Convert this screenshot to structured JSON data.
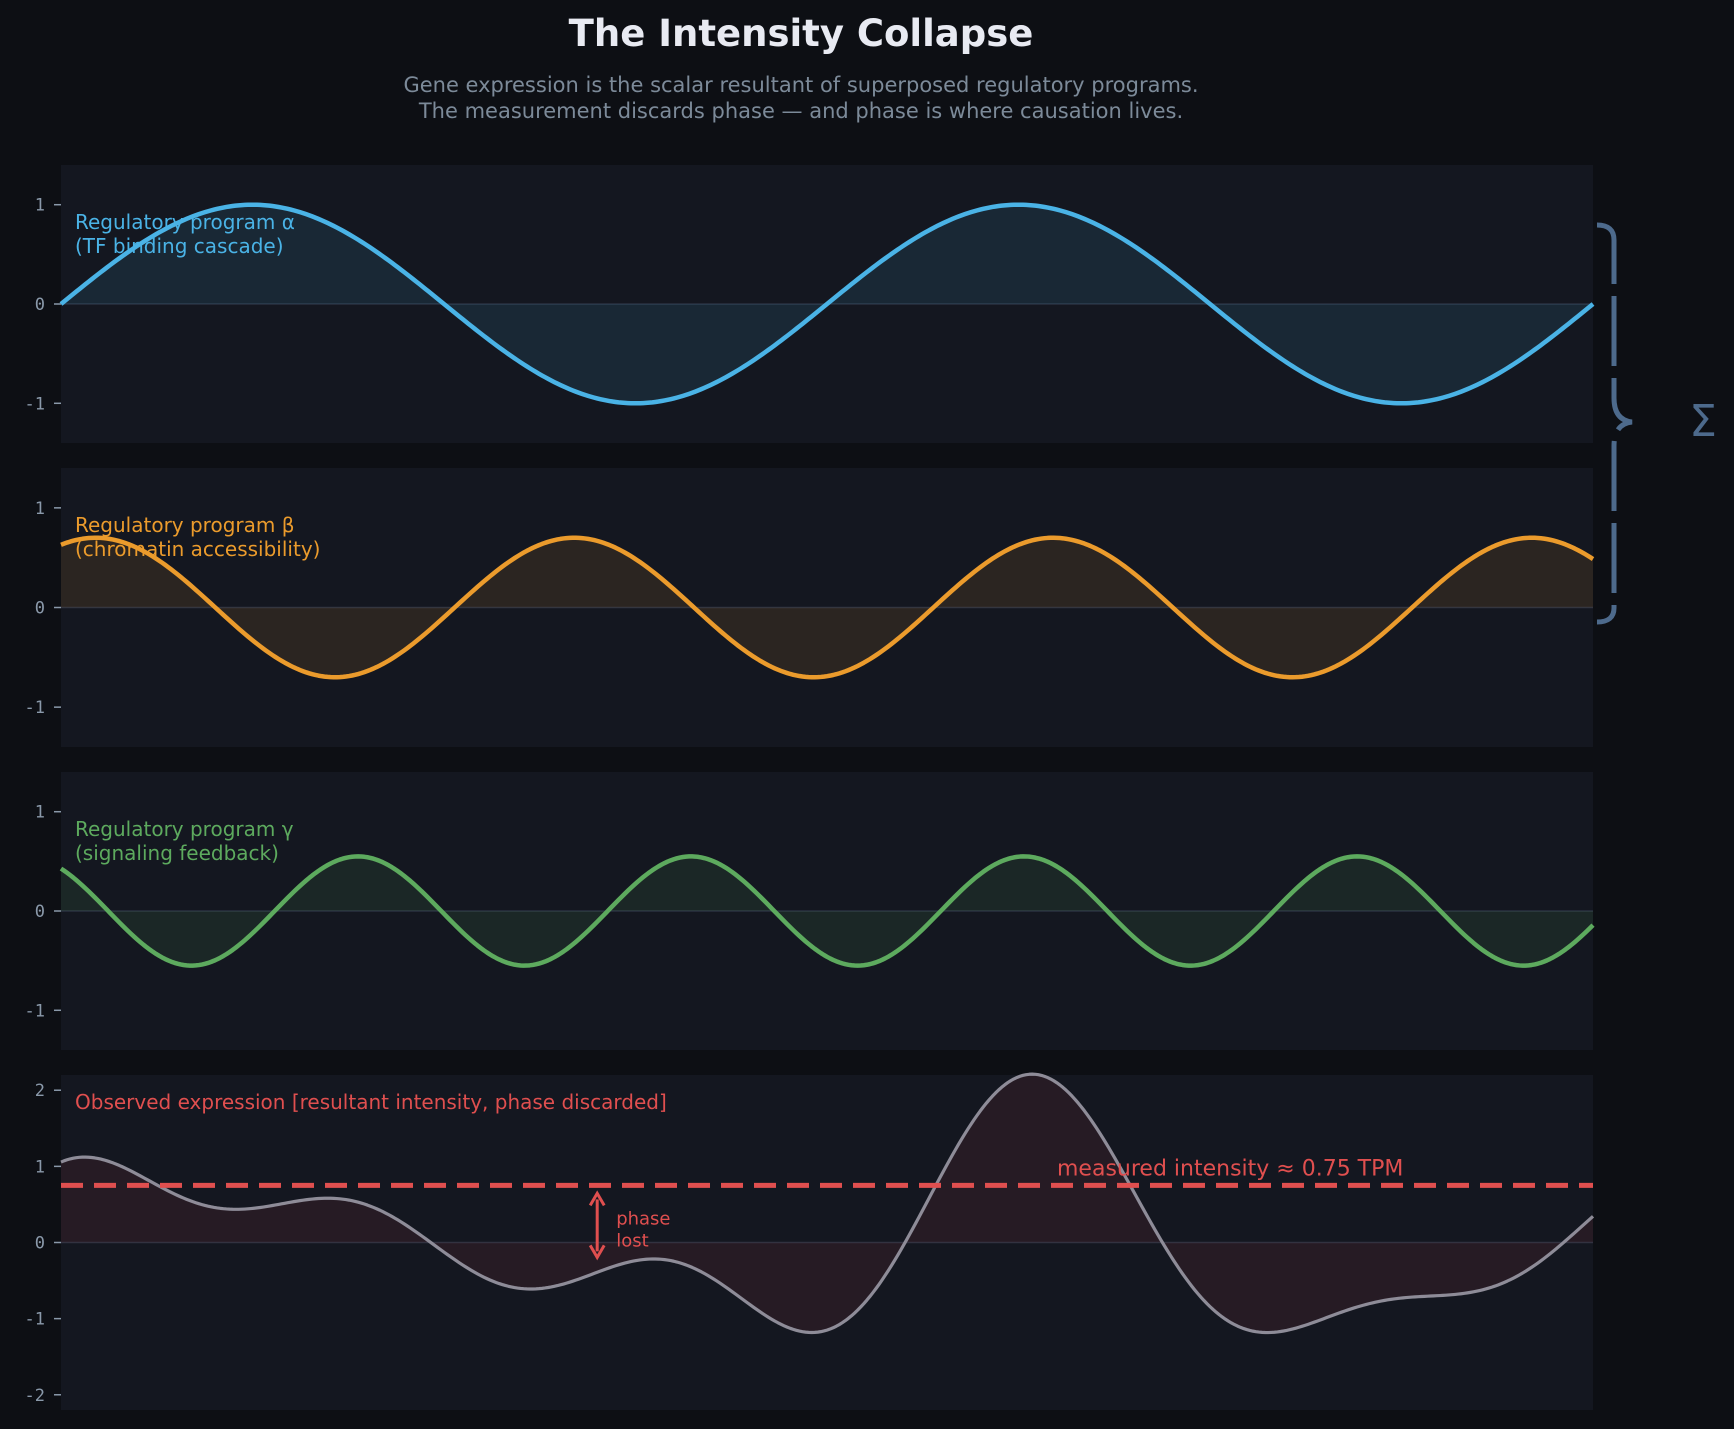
{
  "title": "The Intensity Collapse",
  "subtitle_lines": [
    "Gene expression is the scalar resultant of superposed regulatory programs.",
    "The measurement discards phase — and phase is where causation lives."
  ],
  "sigma_symbol": "Σ",
  "colors": {
    "background": "#0d0f14",
    "panel": "#141720",
    "alpha": "#4ab3e6",
    "beta": "#eb9b2c",
    "gamma": "#5daa5e",
    "observed_line": "#8e8c98",
    "measured": "#e04f4f",
    "brace": "#4d6a8c",
    "tick": "#8a99aa",
    "title": "#e8eaf2",
    "subtitle": "#7c8a99"
  },
  "chart_data": [
    {
      "type": "line",
      "label_lines": [
        "Regulatory program α",
        "(TF binding cascade)"
      ],
      "series": [
        {
          "name": "alpha",
          "amplitude": 1.0,
          "cycles": 2.0,
          "phase_deg": 0
        }
      ],
      "ylim": [
        -1.4,
        1.4
      ],
      "yticks": [
        1,
        0,
        -1
      ],
      "ytick_labels": [
        "1",
        "0",
        "-1"
      ],
      "color_key": "alpha"
    },
    {
      "type": "line",
      "label_lines": [
        "Regulatory program β",
        "(chromatin accessibility)"
      ],
      "series": [
        {
          "name": "beta",
          "amplitude": 0.7,
          "cycles": 3.2,
          "phase_deg": 64
        }
      ],
      "ylim": [
        -1.4,
        1.4
      ],
      "yticks": [
        1,
        0,
        -1
      ],
      "ytick_labels": [
        "1",
        "0",
        "-1"
      ],
      "color_key": "beta"
    },
    {
      "type": "line",
      "label_lines": [
        "Regulatory program γ",
        "(signaling feedback)"
      ],
      "series": [
        {
          "name": "gamma",
          "amplitude": 0.55,
          "cycles": 4.6,
          "phase_deg": 129
        }
      ],
      "ylim": [
        -1.4,
        1.4
      ],
      "yticks": [
        1,
        0,
        -1
      ],
      "ytick_labels": [
        "1",
        "0",
        "-1"
      ],
      "color_key": "gamma"
    },
    {
      "type": "line",
      "label_lines": [
        "Observed expression  [resultant intensity, phase discarded]"
      ],
      "series": [
        {
          "name": "observed",
          "sum_of": [
            "alpha",
            "beta",
            "gamma"
          ]
        }
      ],
      "reference_line": {
        "y": 0.75,
        "label": "measured intensity  ≈  0.75 TPM"
      },
      "annotation": {
        "label_lines": [
          "phase",
          "lost"
        ],
        "x_fraction": 0.35
      },
      "ylim": [
        -2.2,
        2.2
      ],
      "yticks": [
        2,
        1,
        0,
        -1,
        -2
      ],
      "ytick_labels": [
        "2",
        "1",
        "0",
        "-1",
        "-2"
      ],
      "color_key": "observed_line"
    }
  ]
}
